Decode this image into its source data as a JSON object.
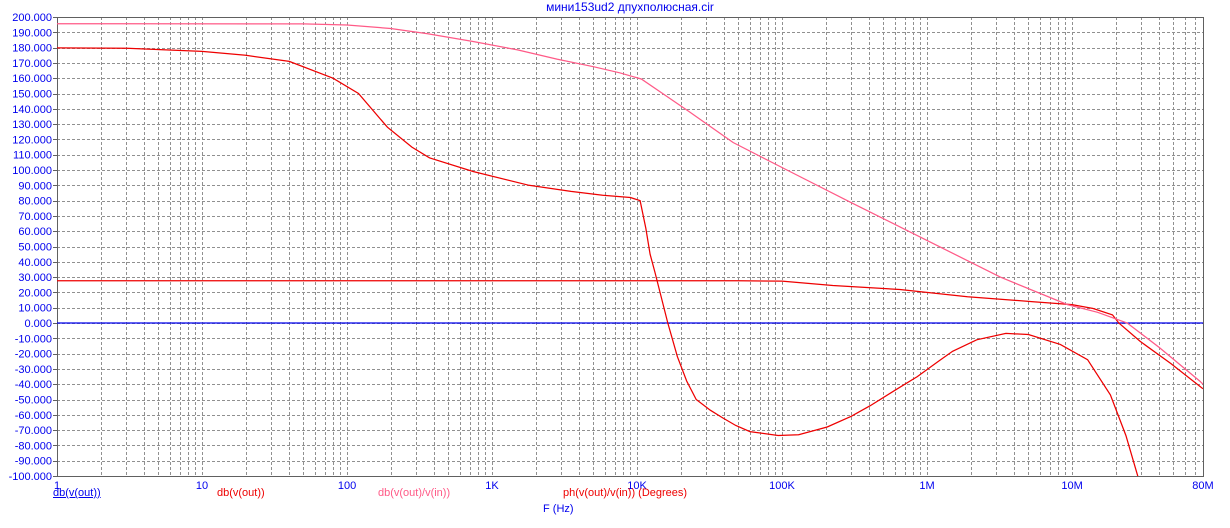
{
  "window": {
    "background": "#FFFFFF"
  },
  "chart_data": {
    "type": "line",
    "title": "мини153ud2 дпухполюсная.cir",
    "xlabel": "F (Hz)",
    "x_scale": "log",
    "x_range": [
      1,
      80000000
    ],
    "y_range": [
      -100,
      200
    ],
    "y_tick_step": 10,
    "grid": "dashed",
    "legend_position": "bottom",
    "colors": {
      "text": "#0000EE",
      "grid": "#909090",
      "frame": "#606060",
      "blue_curve": "#0000EE",
      "red_curve": "#EE0000",
      "pink_curve": "#FF5A87"
    },
    "x_ticks": [
      {
        "label": "1",
        "value": 1
      },
      {
        "label": "10",
        "value": 10
      },
      {
        "label": "100",
        "value": 100
      },
      {
        "label": "1K",
        "value": 1000
      },
      {
        "label": "10K",
        "value": 10000
      },
      {
        "label": "100K",
        "value": 100000
      },
      {
        "label": "1M",
        "value": 1000000
      },
      {
        "label": "10M",
        "value": 10000000
      },
      {
        "label": "80M",
        "value": 80000000
      }
    ],
    "y_tick_labels": [
      "200.000",
      "190.000",
      "180.000",
      "170.000",
      "160.000",
      "150.000",
      "140.000",
      "130.000",
      "120.000",
      "110.000",
      "100.000",
      "90.000",
      "80.000",
      "70.000",
      "60.000",
      "50.000",
      "40.000",
      "30.000",
      "20.000",
      "10.000",
      "0.000",
      "-10.000",
      "-20.000",
      "-30.000",
      "-40.000",
      "-50.000",
      "-60.000",
      "-70.000",
      "-80.000",
      "-90.000",
      "-100.000"
    ],
    "series": [
      {
        "id": "db-v-out-blue",
        "legend_label": "db(v(out))",
        "color": "#0000EE",
        "selected": true,
        "points": [
          [
            1,
            0
          ],
          [
            80000000,
            0
          ]
        ]
      },
      {
        "id": "db-v-out-red",
        "legend_label": "db(v(out))",
        "color": "#EE0000",
        "selected": false,
        "points": [
          [
            1,
            27.6
          ],
          [
            50000,
            27.6
          ],
          [
            100000,
            27.4
          ],
          [
            224000,
            24.5
          ],
          [
            650000,
            21.9
          ],
          [
            1900000,
            17.2
          ],
          [
            5400000,
            13.9
          ],
          [
            10000000,
            12
          ],
          [
            14000000,
            9.5
          ],
          [
            19000000,
            5.3
          ],
          [
            21000000,
            0
          ],
          [
            29500000,
            -12
          ],
          [
            48000000,
            -26.5
          ],
          [
            80000000,
            -43
          ]
        ]
      },
      {
        "id": "db-v-out-v-in",
        "legend_label": "db(v(out)/v(in))",
        "color": "#FF5A87",
        "selected": false,
        "points": [
          [
            1,
            195.6
          ],
          [
            50,
            195.5
          ],
          [
            100,
            194.8
          ],
          [
            200,
            192.5
          ],
          [
            360,
            189
          ],
          [
            740,
            184
          ],
          [
            1500,
            178.5
          ],
          [
            2800,
            172.5
          ],
          [
            5000,
            167.5
          ],
          [
            7600,
            163.5
          ],
          [
            10700,
            159.5
          ],
          [
            15000,
            150
          ],
          [
            23000,
            138
          ],
          [
            46000,
            118
          ],
          [
            108000,
            100
          ],
          [
            310000,
            78
          ],
          [
            1100000,
            52
          ],
          [
            3200000,
            30
          ],
          [
            9300000,
            12
          ],
          [
            15000000,
            7
          ],
          [
            24000000,
            0
          ],
          [
            40000000,
            -16
          ],
          [
            76000000,
            -38
          ],
          [
            80000000,
            -40
          ]
        ]
      },
      {
        "id": "ph-v-out-v-in",
        "legend_label": "ph(v(out)/v(in)) (Degrees)",
        "color": "#EE0000",
        "selected": false,
        "points": [
          [
            1,
            179.8
          ],
          [
            3,
            179.6
          ],
          [
            10,
            177.5
          ],
          [
            20,
            175
          ],
          [
            40,
            171
          ],
          [
            80,
            160
          ],
          [
            120,
            150
          ],
          [
            190,
            128
          ],
          [
            280,
            115
          ],
          [
            370,
            108
          ],
          [
            740,
            99
          ],
          [
            1800,
            90
          ],
          [
            3500,
            86
          ],
          [
            5800,
            83.5
          ],
          [
            9000,
            82
          ],
          [
            10500,
            80
          ],
          [
            11500,
            62
          ],
          [
            12300,
            45
          ],
          [
            13300,
            33
          ],
          [
            16300,
            0
          ],
          [
            19000,
            -22
          ],
          [
            22000,
            -38
          ],
          [
            25600,
            -50
          ],
          [
            32000,
            -57
          ],
          [
            39000,
            -62
          ],
          [
            48000,
            -67
          ],
          [
            60000,
            -71
          ],
          [
            94000,
            -73.5
          ],
          [
            130000,
            -73
          ],
          [
            205000,
            -68
          ],
          [
            300000,
            -61
          ],
          [
            407000,
            -54
          ],
          [
            600000,
            -44
          ],
          [
            857000,
            -35
          ],
          [
            1200000,
            -25
          ],
          [
            1500000,
            -18.5
          ],
          [
            2200000,
            -11
          ],
          [
            3500000,
            -6.8
          ],
          [
            5000000,
            -7.5
          ],
          [
            8300000,
            -14
          ],
          [
            12800000,
            -24
          ],
          [
            18400000,
            -47
          ],
          [
            23500000,
            -73.5
          ],
          [
            29000000,
            -103
          ]
        ]
      }
    ]
  }
}
